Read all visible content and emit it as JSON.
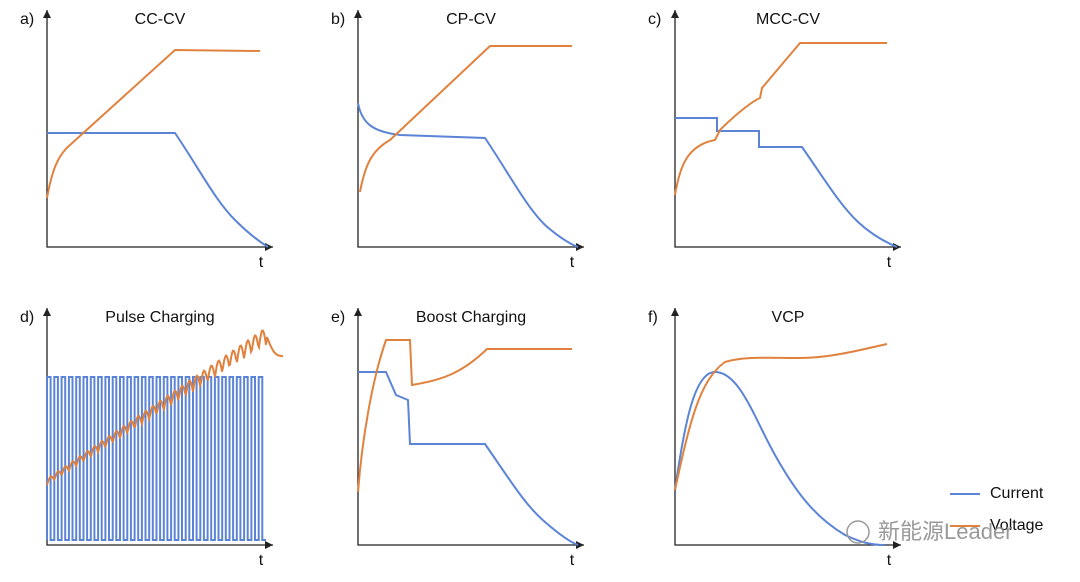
{
  "panels": [
    {
      "label": "a)",
      "title": "CC-CV",
      "x_axis": "t"
    },
    {
      "label": "b)",
      "title": "CP-CV",
      "x_axis": "t"
    },
    {
      "label": "c)",
      "title": "MCC-CV",
      "x_axis": "t"
    },
    {
      "label": "d)",
      "title": "Pulse Charging",
      "x_axis": "t"
    },
    {
      "label": "e)",
      "title": "Boost Charging",
      "x_axis": "t"
    },
    {
      "label": "f)",
      "title": "VCP",
      "x_axis": "t"
    }
  ],
  "legend": [
    "Current",
    "Voltage"
  ],
  "watermark": "新能源Leader"
}
